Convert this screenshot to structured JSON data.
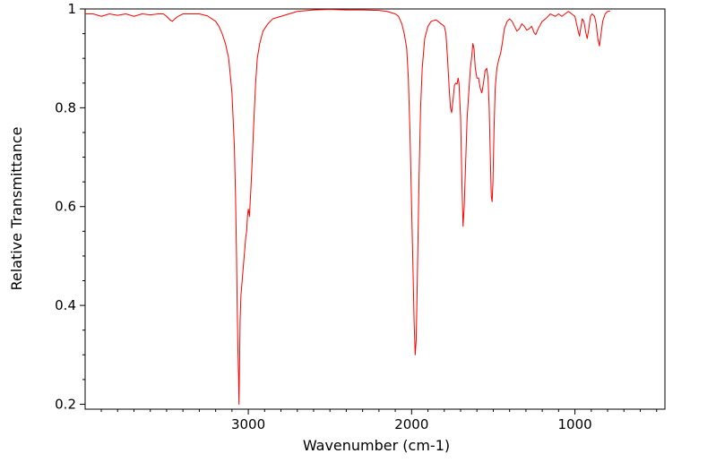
{
  "chart_data": {
    "type": "line",
    "title": "",
    "xlabel": "Wavenumber (cm-1)",
    "ylabel": "Relative Transmittance",
    "xlim": [
      3999,
      449
    ],
    "ylim": [
      0.19,
      1.0
    ],
    "x_reversed": true,
    "grid": false,
    "legend": "none",
    "x_ticks": [
      3000,
      2000,
      1000
    ],
    "x_tick_labels": [
      "3000",
      "2000",
      "1000"
    ],
    "y_ticks": [
      0.2,
      0.4,
      0.6,
      0.8,
      1.0
    ],
    "y_tick_labels": [
      "0.2",
      "0.4",
      "0.6",
      "0.8",
      "1"
    ],
    "series": [
      {
        "color": "#ff0000",
        "points": [
          [
            3999,
            0.99
          ],
          [
            3950,
            0.99
          ],
          [
            3900,
            0.985
          ],
          [
            3850,
            0.99
          ],
          [
            3800,
            0.987
          ],
          [
            3750,
            0.99
          ],
          [
            3700,
            0.985
          ],
          [
            3650,
            0.99
          ],
          [
            3600,
            0.988
          ],
          [
            3550,
            0.99
          ],
          [
            3520,
            0.99
          ],
          [
            3500,
            0.985
          ],
          [
            3480,
            0.978
          ],
          [
            3465,
            0.975
          ],
          [
            3450,
            0.98
          ],
          [
            3430,
            0.985
          ],
          [
            3400,
            0.99
          ],
          [
            3350,
            0.99
          ],
          [
            3300,
            0.99
          ],
          [
            3250,
            0.986
          ],
          [
            3200,
            0.975
          ],
          [
            3180,
            0.965
          ],
          [
            3160,
            0.95
          ],
          [
            3140,
            0.93
          ],
          [
            3120,
            0.9
          ],
          [
            3100,
            0.83
          ],
          [
            3085,
            0.72
          ],
          [
            3078,
            0.62
          ],
          [
            3072,
            0.5
          ],
          [
            3068,
            0.4
          ],
          [
            3064,
            0.32
          ],
          [
            3060,
            0.26
          ],
          [
            3057,
            0.2
          ],
          [
            3055,
            0.25
          ],
          [
            3050,
            0.37
          ],
          [
            3045,
            0.42
          ],
          [
            3040,
            0.44
          ],
          [
            3035,
            0.46
          ],
          [
            3030,
            0.48
          ],
          [
            3025,
            0.5
          ],
          [
            3020,
            0.52
          ],
          [
            3015,
            0.54
          ],
          [
            3010,
            0.55
          ],
          [
            3005,
            0.58
          ],
          [
            3000,
            0.595
          ],
          [
            2997,
            0.59
          ],
          [
            2993,
            0.58
          ],
          [
            2985,
            0.63
          ],
          [
            2975,
            0.7
          ],
          [
            2965,
            0.78
          ],
          [
            2955,
            0.85
          ],
          [
            2945,
            0.9
          ],
          [
            2930,
            0.93
          ],
          [
            2910,
            0.955
          ],
          [
            2880,
            0.97
          ],
          [
            2850,
            0.98
          ],
          [
            2800,
            0.985
          ],
          [
            2750,
            0.99
          ],
          [
            2700,
            0.995
          ],
          [
            2600,
            0.998
          ],
          [
            2500,
            0.999
          ],
          [
            2400,
            0.998
          ],
          [
            2300,
            0.998
          ],
          [
            2200,
            0.997
          ],
          [
            2150,
            0.995
          ],
          [
            2100,
            0.99
          ],
          [
            2080,
            0.985
          ],
          [
            2060,
            0.97
          ],
          [
            2045,
            0.95
          ],
          [
            2030,
            0.92
          ],
          [
            2020,
            0.86
          ],
          [
            2010,
            0.75
          ],
          [
            2000,
            0.6
          ],
          [
            1990,
            0.45
          ],
          [
            1985,
            0.37
          ],
          [
            1978,
            0.3
          ],
          [
            1972,
            0.33
          ],
          [
            1965,
            0.45
          ],
          [
            1955,
            0.65
          ],
          [
            1945,
            0.8
          ],
          [
            1935,
            0.88
          ],
          [
            1920,
            0.94
          ],
          [
            1900,
            0.965
          ],
          [
            1880,
            0.975
          ],
          [
            1850,
            0.978
          ],
          [
            1820,
            0.97
          ],
          [
            1800,
            0.965
          ],
          [
            1790,
            0.95
          ],
          [
            1780,
            0.9
          ],
          [
            1770,
            0.84
          ],
          [
            1762,
            0.8
          ],
          [
            1755,
            0.79
          ],
          [
            1745,
            0.82
          ],
          [
            1738,
            0.845
          ],
          [
            1730,
            0.85
          ],
          [
            1722,
            0.848
          ],
          [
            1715,
            0.86
          ],
          [
            1710,
            0.85
          ],
          [
            1700,
            0.78
          ],
          [
            1692,
            0.65
          ],
          [
            1685,
            0.56
          ],
          [
            1678,
            0.6
          ],
          [
            1670,
            0.68
          ],
          [
            1660,
            0.78
          ],
          [
            1650,
            0.83
          ],
          [
            1640,
            0.88
          ],
          [
            1630,
            0.91
          ],
          [
            1625,
            0.93
          ],
          [
            1618,
            0.92
          ],
          [
            1610,
            0.88
          ],
          [
            1600,
            0.86
          ],
          [
            1590,
            0.86
          ],
          [
            1580,
            0.84
          ],
          [
            1570,
            0.83
          ],
          [
            1560,
            0.85
          ],
          [
            1550,
            0.875
          ],
          [
            1540,
            0.88
          ],
          [
            1532,
            0.86
          ],
          [
            1525,
            0.8
          ],
          [
            1518,
            0.7
          ],
          [
            1512,
            0.62
          ],
          [
            1507,
            0.61
          ],
          [
            1502,
            0.65
          ],
          [
            1495,
            0.76
          ],
          [
            1488,
            0.84
          ],
          [
            1478,
            0.88
          ],
          [
            1465,
            0.9
          ],
          [
            1455,
            0.91
          ],
          [
            1445,
            0.93
          ],
          [
            1432,
            0.96
          ],
          [
            1415,
            0.975
          ],
          [
            1400,
            0.98
          ],
          [
            1385,
            0.975
          ],
          [
            1370,
            0.965
          ],
          [
            1355,
            0.955
          ],
          [
            1340,
            0.96
          ],
          [
            1325,
            0.97
          ],
          [
            1310,
            0.965
          ],
          [
            1295,
            0.957
          ],
          [
            1280,
            0.96
          ],
          [
            1265,
            0.965
          ],
          [
            1250,
            0.952
          ],
          [
            1240,
            0.948
          ],
          [
            1225,
            0.96
          ],
          [
            1200,
            0.975
          ],
          [
            1180,
            0.98
          ],
          [
            1150,
            0.99
          ],
          [
            1120,
            0.985
          ],
          [
            1100,
            0.99
          ],
          [
            1080,
            0.985
          ],
          [
            1060,
            0.99
          ],
          [
            1040,
            0.995
          ],
          [
            1020,
            0.99
          ],
          [
            1000,
            0.985
          ],
          [
            990,
            0.97
          ],
          [
            980,
            0.955
          ],
          [
            972,
            0.945
          ],
          [
            965,
            0.96
          ],
          [
            955,
            0.98
          ],
          [
            945,
            0.975
          ],
          [
            935,
            0.955
          ],
          [
            925,
            0.94
          ],
          [
            915,
            0.96
          ],
          [
            905,
            0.985
          ],
          [
            895,
            0.99
          ],
          [
            880,
            0.985
          ],
          [
            870,
            0.97
          ],
          [
            860,
            0.94
          ],
          [
            850,
            0.925
          ],
          [
            840,
            0.95
          ],
          [
            830,
            0.975
          ],
          [
            815,
            0.99
          ],
          [
            800,
            0.995
          ],
          [
            785,
            0.996
          ]
        ]
      }
    ]
  }
}
